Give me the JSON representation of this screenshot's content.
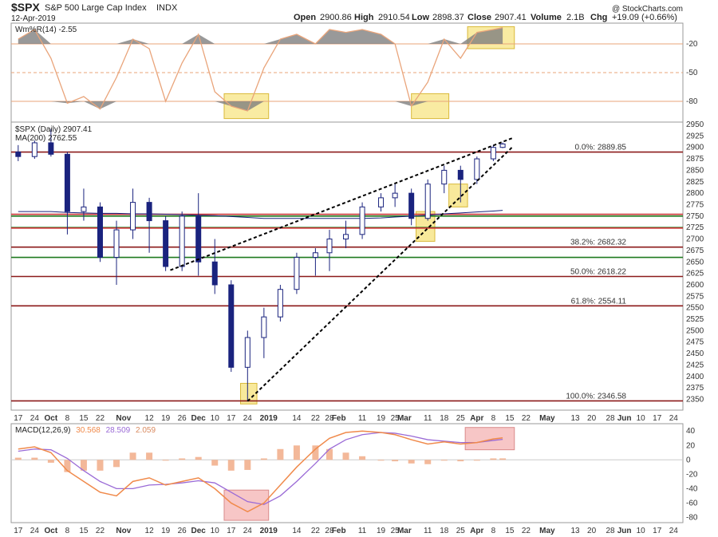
{
  "header": {
    "symbol": "$SPX",
    "name": "S&P 500 Large Cap Index",
    "exchange": "INDX",
    "date": "12-Apr-2019",
    "open_label": "Open",
    "open": "2900.86",
    "high_label": "High",
    "high": "2910.54",
    "low_label": "Low",
    "low": "2898.37",
    "close_label": "Close",
    "close": "2907.41",
    "volume_label": "Volume",
    "volume": "2.1B",
    "chg_label": "Chg",
    "chg": "+19.09 (+0.66%)",
    "watermark": "@ StockCharts.com"
  },
  "colors": {
    "candle_up": "#ffffff",
    "candle_down": "#1a237e",
    "ma200": "#1a237e",
    "willr_line": "#e9a47a",
    "willr_fill": "#808080",
    "macd_line": "#f08a4b",
    "signal_line": "#9a6ad6",
    "histogram": "#f3b899",
    "resistance": "#8b1a1a",
    "support_green": "#1f7a1f",
    "red_line": "#c83232",
    "highlight_yellow": "#f6e27a",
    "highlight_pink": "#f4b3b3"
  },
  "chart_data": [
    {
      "type": "line",
      "panel": "williams-r",
      "legend": "Wm%R(14) -2.55",
      "ylim": [
        -100,
        0
      ],
      "yticks": [
        -20,
        -50,
        -80
      ],
      "ytick_labels": [
        "-20",
        "-50",
        "-80"
      ],
      "x": [
        "2018-09-17",
        "2018-09-24",
        "2018-10-01",
        "2018-10-08",
        "2018-10-15",
        "2018-10-22",
        "2018-10-29",
        "2018-11-05",
        "2018-11-12",
        "2018-11-19",
        "2018-11-26",
        "2018-12-03",
        "2018-12-10",
        "2018-12-17",
        "2018-12-24",
        "2018-12-31",
        "2019-01-07",
        "2019-01-14",
        "2019-01-22",
        "2019-01-28",
        "2019-02-04",
        "2019-02-11",
        "2019-02-19",
        "2019-02-25",
        "2019-03-04",
        "2019-03-11",
        "2019-03-18",
        "2019-03-25",
        "2019-04-01",
        "2019-04-08",
        "2019-04-12"
      ],
      "values": [
        -15,
        -5,
        -35,
        -82,
        -75,
        -88,
        -55,
        -15,
        -25,
        -80,
        -40,
        -10,
        -70,
        -85,
        -90,
        -45,
        -15,
        -10,
        -20,
        -5,
        -8,
        -5,
        -10,
        -20,
        -85,
        -60,
        -15,
        -35,
        -8,
        -5,
        -3
      ],
      "highlights": [
        {
          "x0": "2018-12-14",
          "x1": "2019-01-02",
          "y0": -72,
          "y1": -98
        },
        {
          "x0": "2019-03-04",
          "x1": "2019-03-20",
          "y0": -72,
          "y1": -98
        },
        {
          "x0": "2019-03-28",
          "x1": "2019-04-17",
          "y0": -2,
          "y1": -25
        }
      ]
    },
    {
      "type": "candlestick",
      "panel": "price",
      "legend": [
        "$SPX (Daily) 2907.41",
        "MA(200) 2762.55"
      ],
      "ylim": [
        2330,
        2950
      ],
      "yticks": [
        2350,
        2375,
        2400,
        2425,
        2450,
        2475,
        2500,
        2525,
        2550,
        2575,
        2600,
        2625,
        2650,
        2675,
        2700,
        2725,
        2750,
        2775,
        2800,
        2825,
        2850,
        2875,
        2900,
        2925,
        2950
      ],
      "ohlc": [
        [
          "2018-09-17",
          2890,
          2905,
          2870,
          2880
        ],
        [
          "2018-09-24",
          2880,
          2915,
          2875,
          2910
        ],
        [
          "2018-10-01",
          2910,
          2940,
          2880,
          2885
        ],
        [
          "2018-10-08",
          2885,
          2890,
          2710,
          2760
        ],
        [
          "2018-10-15",
          2760,
          2810,
          2740,
          2770
        ],
        [
          "2018-10-22",
          2770,
          2780,
          2650,
          2660
        ],
        [
          "2018-10-29",
          2660,
          2740,
          2600,
          2720
        ],
        [
          "2018-11-05",
          2720,
          2810,
          2700,
          2780
        ],
        [
          "2018-11-12",
          2780,
          2790,
          2670,
          2740
        ],
        [
          "2018-11-19",
          2740,
          2750,
          2630,
          2640
        ],
        [
          "2018-11-26",
          2640,
          2760,
          2630,
          2750
        ],
        [
          "2018-12-03",
          2750,
          2800,
          2620,
          2650
        ],
        [
          "2018-12-10",
          2650,
          2700,
          2580,
          2600
        ],
        [
          "2018-12-17",
          2600,
          2610,
          2410,
          2420
        ],
        [
          "2018-12-24",
          2420,
          2500,
          2346,
          2485
        ],
        [
          "2018-12-31",
          2485,
          2550,
          2440,
          2530
        ],
        [
          "2019-01-07",
          2530,
          2600,
          2520,
          2590
        ],
        [
          "2019-01-14",
          2590,
          2670,
          2580,
          2660
        ],
        [
          "2019-01-22",
          2660,
          2680,
          2620,
          2670
        ],
        [
          "2019-01-28",
          2670,
          2720,
          2630,
          2700
        ],
        [
          "2019-02-04",
          2700,
          2740,
          2680,
          2710
        ],
        [
          "2019-02-11",
          2710,
          2780,
          2700,
          2770
        ],
        [
          "2019-02-19",
          2770,
          2800,
          2760,
          2790
        ],
        [
          "2019-02-25",
          2790,
          2820,
          2770,
          2800
        ],
        [
          "2019-03-04",
          2800,
          2810,
          2730,
          2745
        ],
        [
          "2019-03-11",
          2745,
          2830,
          2740,
          2820
        ],
        [
          "2019-03-18",
          2820,
          2860,
          2800,
          2850
        ],
        [
          "2019-03-25",
          2850,
          2860,
          2780,
          2830
        ],
        [
          "2019-04-01",
          2830,
          2880,
          2820,
          2875
        ],
        [
          "2019-04-08",
          2875,
          2905,
          2870,
          2900
        ],
        [
          "2019-04-12",
          2900,
          2910.54,
          2898.37,
          2907.41
        ]
      ],
      "ma200": [
        2760,
        2760,
        2760,
        2758,
        2757,
        2756,
        2756,
        2755,
        2755,
        2754,
        2753,
        2752,
        2751,
        2749,
        2747,
        2745,
        2745,
        2745,
        2745,
        2745,
        2745,
        2745,
        2746,
        2748,
        2750,
        2752,
        2755,
        2757,
        2759,
        2761,
        2762.55
      ],
      "levels": [
        {
          "label": "0.0%: 2889.85",
          "value": 2889.85,
          "color": "resistance"
        },
        {
          "label": "",
          "value": 2750,
          "color": "support_green"
        },
        {
          "label": "",
          "value": 2725,
          "color": "support_green"
        },
        {
          "label": "",
          "value": 2754,
          "color": "red_line"
        },
        {
          "label": "",
          "value": 2724,
          "color": "red_line"
        },
        {
          "label": "38.2%: 2682.32",
          "value": 2682.32,
          "color": "resistance"
        },
        {
          "label": "",
          "value": 2660,
          "color": "support_green"
        },
        {
          "label": "50.0%: 2618.22",
          "value": 2618.22,
          "color": "resistance"
        },
        {
          "label": "61.8%: 2554.11",
          "value": 2554.11,
          "color": "resistance"
        },
        {
          "label": "100.0%: 2346.58",
          "value": 2346.58,
          "color": "resistance"
        }
      ],
      "trendlines": [
        {
          "x0": "2018-11-21",
          "y0": 2632,
          "x1": "2019-04-16",
          "y1": 2920
        },
        {
          "x0": "2018-12-24",
          "y0": 2346,
          "x1": "2019-04-16",
          "y1": 2900
        }
      ],
      "highlights": [
        {
          "x0": "2018-12-21",
          "x1": "2018-12-28",
          "y0": 2340,
          "y1": 2385
        },
        {
          "x0": "2019-03-06",
          "x1": "2019-03-14",
          "y0": 2695,
          "y1": 2760
        },
        {
          "x0": "2019-03-20",
          "x1": "2019-03-28",
          "y0": 2770,
          "y1": 2820
        }
      ]
    },
    {
      "type": "line",
      "panel": "macd",
      "legend_name": "MACD(12,26,9)",
      "legend_macd": "30.568",
      "legend_signal": "28.509",
      "legend_hist": "2.059",
      "ylim": [
        -85,
        48
      ],
      "yticks": [
        40,
        20,
        0,
        -20,
        -40,
        -60,
        -80
      ],
      "ytick_labels": [
        "40",
        "20",
        "0",
        "-20",
        "-40",
        "-60",
        "-80"
      ],
      "x": [
        "2018-09-17",
        "2018-09-24",
        "2018-10-01",
        "2018-10-08",
        "2018-10-15",
        "2018-10-22",
        "2018-10-29",
        "2018-11-05",
        "2018-11-12",
        "2018-11-19",
        "2018-11-26",
        "2018-12-03",
        "2018-12-10",
        "2018-12-17",
        "2018-12-24",
        "2018-12-31",
        "2019-01-07",
        "2019-01-14",
        "2019-01-22",
        "2019-01-28",
        "2019-02-04",
        "2019-02-11",
        "2019-02-19",
        "2019-02-25",
        "2019-03-04",
        "2019-03-11",
        "2019-03-18",
        "2019-03-25",
        "2019-04-01",
        "2019-04-08",
        "2019-04-12"
      ],
      "macd": [
        15,
        18,
        10,
        -15,
        -30,
        -45,
        -50,
        -30,
        -25,
        -35,
        -30,
        -25,
        -40,
        -60,
        -72,
        -60,
        -35,
        -10,
        15,
        30,
        38,
        40,
        38,
        35,
        28,
        22,
        25,
        22,
        24,
        29,
        30.568
      ],
      "signal": [
        12,
        15,
        14,
        2,
        -15,
        -30,
        -40,
        -40,
        -35,
        -34,
        -32,
        -29,
        -32,
        -45,
        -58,
        -62,
        -50,
        -30,
        -5,
        15,
        28,
        35,
        38,
        37,
        33,
        28,
        26,
        24,
        24,
        27,
        28.509
      ],
      "histogram": [
        3,
        3,
        -4,
        -17,
        -15,
        -15,
        -10,
        10,
        10,
        -1,
        2,
        4,
        -8,
        -15,
        -14,
        2,
        15,
        20,
        20,
        15,
        10,
        5,
        0,
        -2,
        -5,
        -6,
        -1,
        -2,
        0,
        2,
        2.059
      ],
      "highlights": [
        {
          "x0": "2018-12-14",
          "x1": "2019-01-02",
          "y0": -42,
          "y1": -84
        },
        {
          "x0": "2019-03-27",
          "x1": "2019-04-17",
          "y0": 45,
          "y1": 14
        }
      ]
    }
  ],
  "time_axis": {
    "x0": "2018-09-14",
    "x1": "2019-06-28",
    "labels": [
      {
        "d": "2018-09-17",
        "t": "17"
      },
      {
        "d": "2018-09-24",
        "t": "24"
      },
      {
        "d": "2018-10-01",
        "t": "Oct",
        "bold": true
      },
      {
        "d": "2018-10-08",
        "t": "8"
      },
      {
        "d": "2018-10-15",
        "t": "15"
      },
      {
        "d": "2018-10-22",
        "t": "22"
      },
      {
        "d": "2018-11-01",
        "t": "Nov",
        "bold": true
      },
      {
        "d": "2018-11-12",
        "t": "12"
      },
      {
        "d": "2018-11-19",
        "t": "19"
      },
      {
        "d": "2018-11-26",
        "t": "26"
      },
      {
        "d": "2018-12-03",
        "t": "Dec",
        "bold": true
      },
      {
        "d": "2018-12-10",
        "t": "10"
      },
      {
        "d": "2018-12-17",
        "t": "17"
      },
      {
        "d": "2018-12-24",
        "t": "24"
      },
      {
        "d": "2019-01-02",
        "t": "2019",
        "bold": true
      },
      {
        "d": "2019-01-14",
        "t": "14"
      },
      {
        "d": "2019-01-22",
        "t": "22"
      },
      {
        "d": "2019-01-28",
        "t": "28"
      },
      {
        "d": "2019-02-01",
        "t": "Feb",
        "bold": true
      },
      {
        "d": "2019-02-11",
        "t": "11"
      },
      {
        "d": "2019-02-19",
        "t": "19"
      },
      {
        "d": "2019-02-25",
        "t": "25"
      },
      {
        "d": "2019-03-01",
        "t": "Mar",
        "bold": true
      },
      {
        "d": "2019-03-11",
        "t": "11"
      },
      {
        "d": "2019-03-18",
        "t": "18"
      },
      {
        "d": "2019-03-25",
        "t": "25"
      },
      {
        "d": "2019-04-01",
        "t": "Apr",
        "bold": true
      },
      {
        "d": "2019-04-08",
        "t": "8"
      },
      {
        "d": "2019-04-15",
        "t": "15"
      },
      {
        "d": "2019-04-22",
        "t": "22"
      },
      {
        "d": "2019-05-01",
        "t": "May",
        "bold": true
      },
      {
        "d": "2019-05-13",
        "t": "13"
      },
      {
        "d": "2019-05-20",
        "t": "20"
      },
      {
        "d": "2019-05-28",
        "t": "28"
      },
      {
        "d": "2019-06-03",
        "t": "Jun",
        "bold": true
      },
      {
        "d": "2019-06-10",
        "t": "10"
      },
      {
        "d": "2019-06-17",
        "t": "17"
      },
      {
        "d": "2019-06-24",
        "t": "24"
      }
    ]
  }
}
